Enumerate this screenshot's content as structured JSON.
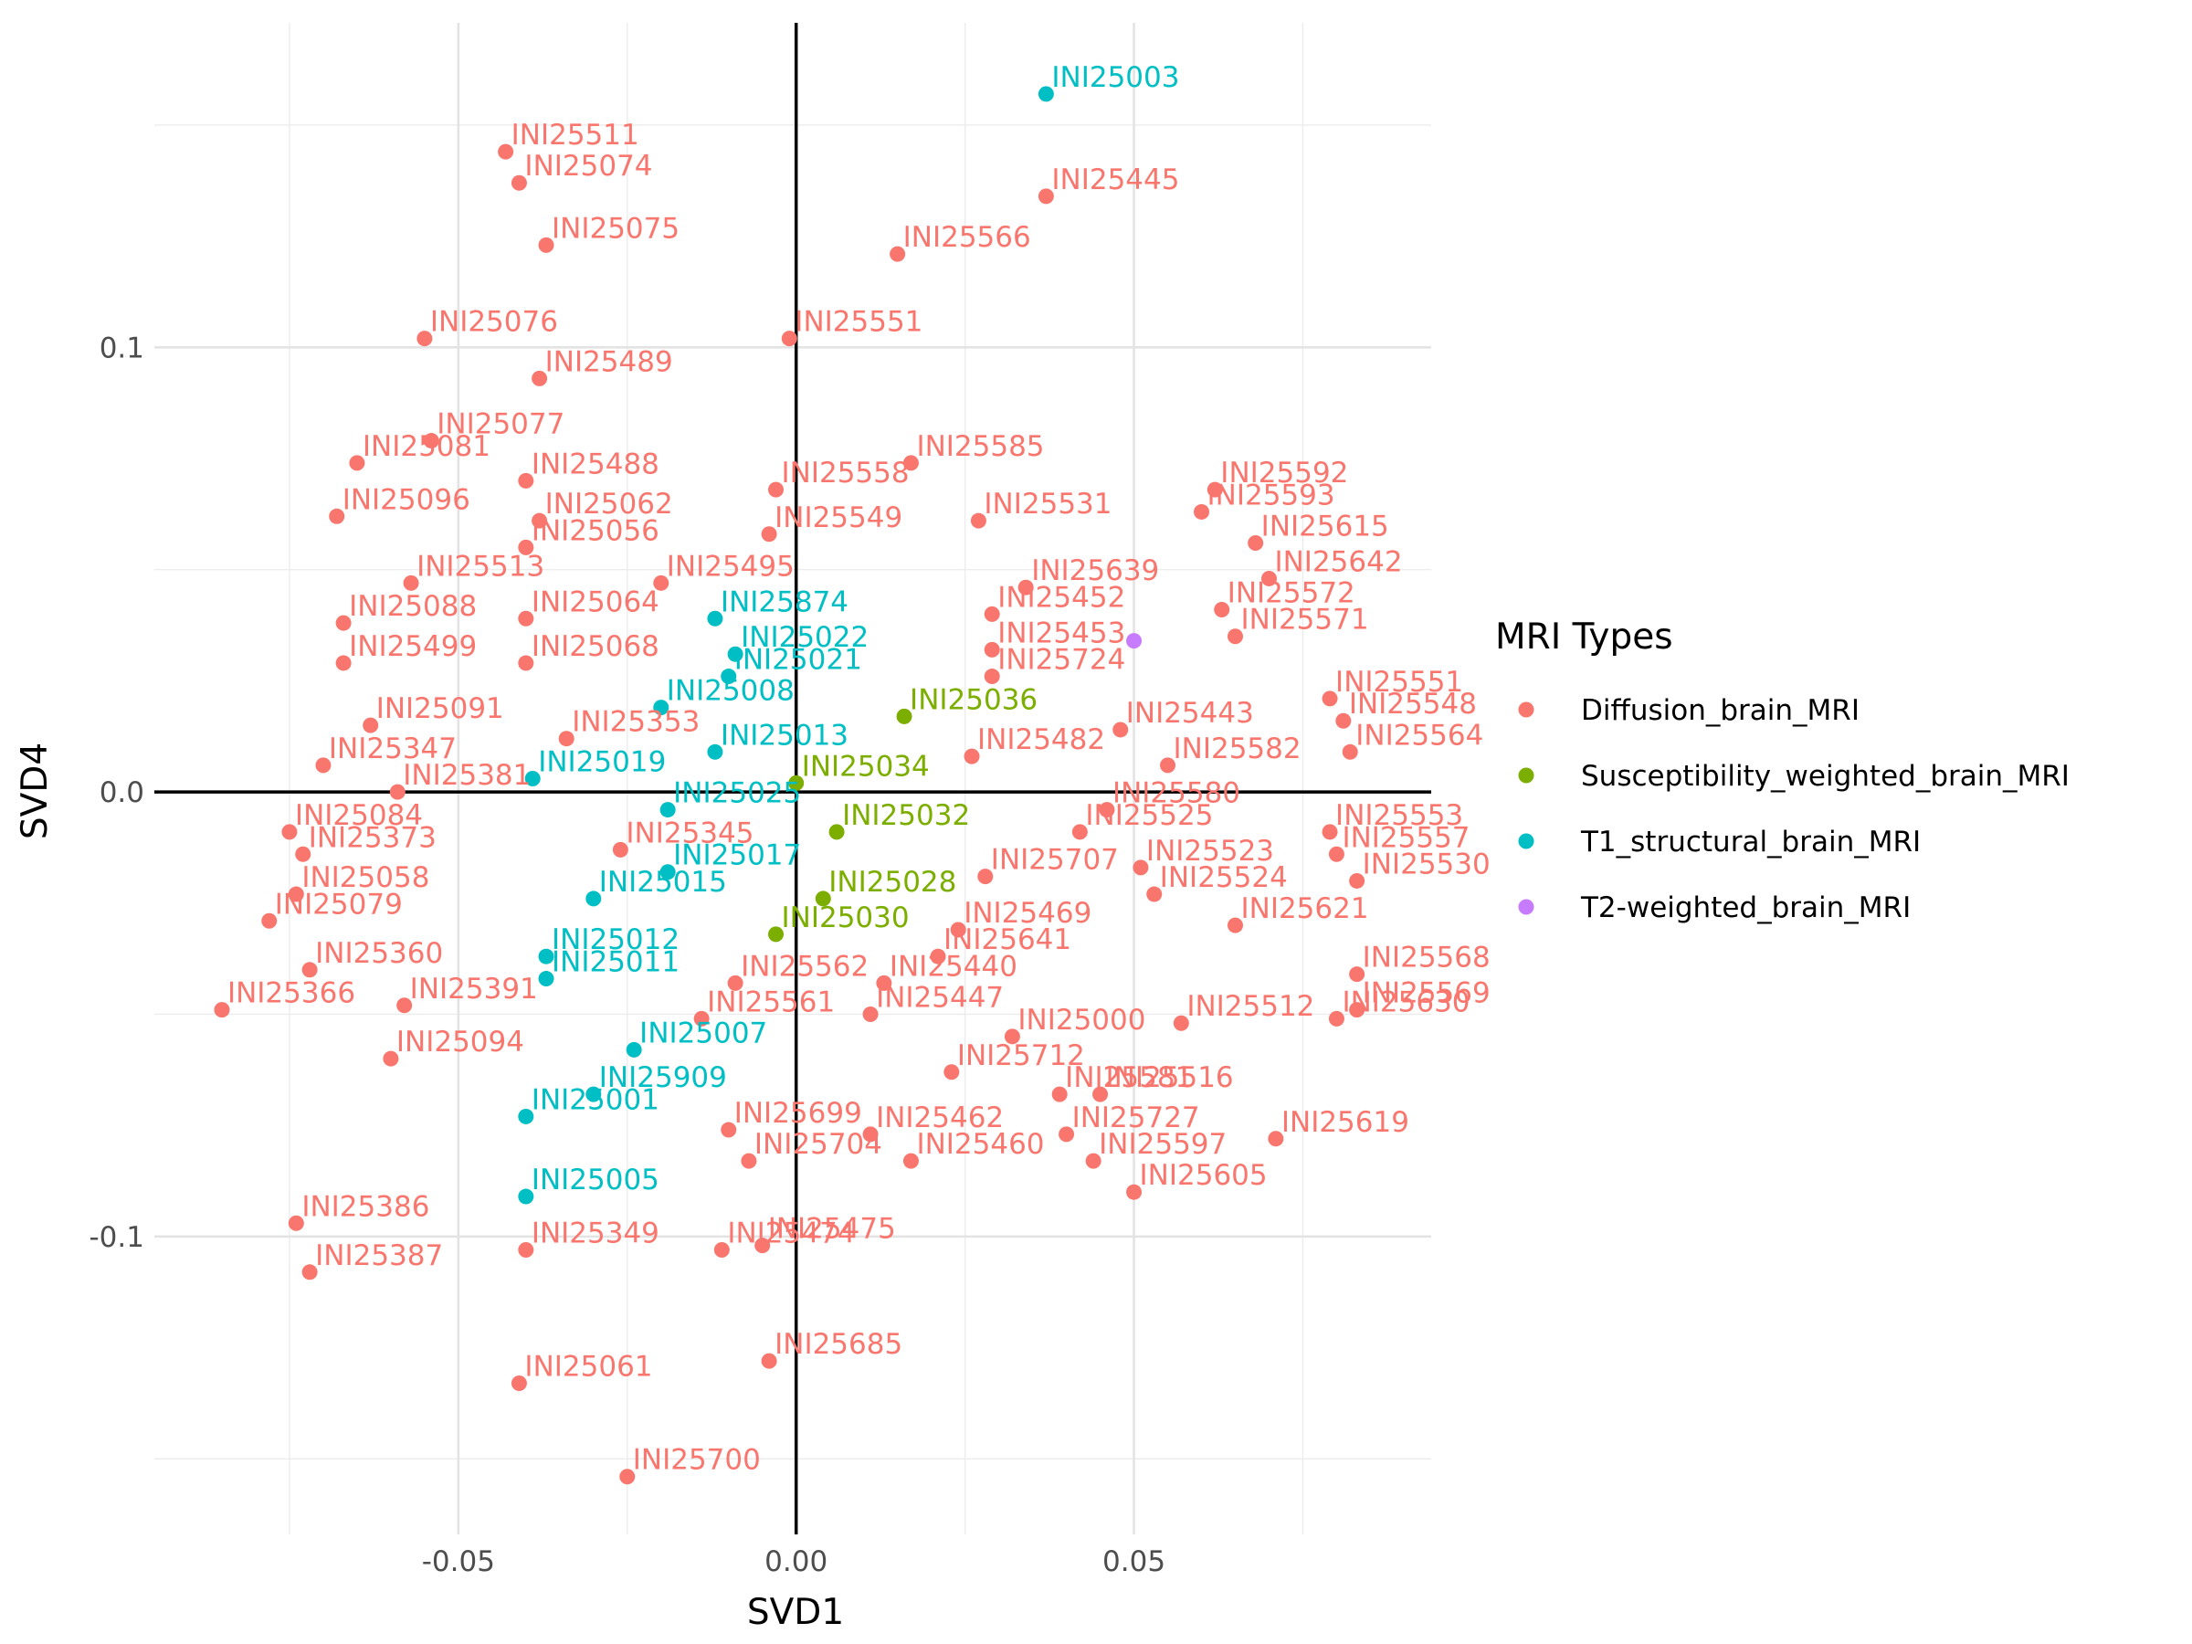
{
  "chart_data": {
    "type": "scatter",
    "title": "",
    "xlabel": "SVD1",
    "ylabel": "SVD4",
    "xlim": [
      -0.095,
      0.094
    ],
    "ylim": [
      -0.167,
      0.173
    ],
    "x_ticks": [
      {
        "value": -0.05,
        "label": "-0.05"
      },
      {
        "value": 0.0,
        "label": "0.00"
      },
      {
        "value": 0.05,
        "label": "0.05"
      }
    ],
    "y_ticks": [
      {
        "value": -0.1,
        "label": "-0.1"
      },
      {
        "value": 0.0,
        "label": "0.0"
      },
      {
        "value": 0.1,
        "label": "0.1"
      }
    ],
    "grid": true,
    "reference_lines": {
      "x": 0,
      "y": 0
    },
    "legend": {
      "title": "MRI Types",
      "position": "right",
      "entries": [
        {
          "name": "Diffusion_brain_MRI",
          "color": "#F8766D"
        },
        {
          "name": "Susceptibility_weighted_brain_MRI",
          "color": "#7CAE00"
        },
        {
          "name": "T1_structural_brain_MRI",
          "color": "#00BFC4"
        },
        {
          "name": "T2-weighted_brain_MRI",
          "color": "#C77CFF"
        }
      ]
    },
    "series": [
      {
        "name": "Diffusion_brain_MRI",
        "color": "#F8766D",
        "points": [
          [
            -0.043,
            0.144,
            "INI25511"
          ],
          [
            -0.041,
            0.137,
            "INI25074"
          ],
          [
            -0.037,
            0.123,
            "INI25075"
          ],
          [
            0.037,
            0.134,
            "INI25445"
          ],
          [
            0.015,
            0.121,
            "INI25566"
          ],
          [
            -0.055,
            0.102,
            "INI25076"
          ],
          [
            -0.001,
            0.102,
            "INI25551"
          ],
          [
            -0.038,
            0.093,
            "INI25489"
          ],
          [
            -0.054,
            0.079,
            "INI25077"
          ],
          [
            -0.065,
            0.074,
            "INI25081"
          ],
          [
            -0.04,
            0.07,
            "INI25488"
          ],
          [
            0.017,
            0.074,
            "INI25585"
          ],
          [
            -0.068,
            0.062,
            "INI25096"
          ],
          [
            -0.038,
            0.061,
            "INI25062"
          ],
          [
            -0.04,
            0.055,
            "INI25056"
          ],
          [
            -0.003,
            0.068,
            "INI25558"
          ],
          [
            0.027,
            0.061,
            "INI25531"
          ],
          [
            -0.004,
            0.058,
            "INI25549"
          ],
          [
            0.062,
            0.068,
            "INI25592"
          ],
          [
            0.06,
            0.063,
            "INI25593"
          ],
          [
            0.068,
            0.056,
            "INI25615"
          ],
          [
            -0.057,
            0.047,
            "INI25513"
          ],
          [
            -0.02,
            0.047,
            "INI25495"
          ],
          [
            0.034,
            0.046,
            "INI25639"
          ],
          [
            0.07,
            0.048,
            "INI25642"
          ],
          [
            -0.067,
            0.038,
            "INI25088"
          ],
          [
            -0.04,
            0.039,
            "INI25064"
          ],
          [
            0.029,
            0.04,
            "INI25452"
          ],
          [
            0.063,
            0.041,
            "INI25572"
          ],
          [
            0.065,
            0.035,
            "INI25571"
          ],
          [
            -0.067,
            0.029,
            "INI25499"
          ],
          [
            -0.04,
            0.029,
            "INI25068"
          ],
          [
            0.029,
            0.032,
            "INI25453"
          ],
          [
            0.029,
            0.026,
            "INI25724"
          ],
          [
            -0.063,
            0.015,
            "INI25091"
          ],
          [
            0.048,
            0.014,
            "INI25443"
          ],
          [
            0.079,
            0.021,
            "INI25551"
          ],
          [
            0.081,
            0.016,
            "INI25548"
          ],
          [
            0.082,
            0.009,
            "INI25564"
          ],
          [
            -0.07,
            0.006,
            "INI25347"
          ],
          [
            -0.034,
            0.012,
            "INI25353"
          ],
          [
            0.026,
            0.008,
            "INI25482"
          ],
          [
            0.055,
            0.006,
            "INI25582"
          ],
          [
            -0.059,
            0.0,
            "INI25381"
          ],
          [
            0.046,
            -0.004,
            "INI25580"
          ],
          [
            0.079,
            -0.009,
            "INI25553"
          ],
          [
            -0.075,
            -0.009,
            "INI25084"
          ],
          [
            0.042,
            -0.009,
            "INI25525"
          ],
          [
            0.08,
            -0.014,
            "INI25557"
          ],
          [
            -0.073,
            -0.014,
            "INI25373"
          ],
          [
            -0.026,
            -0.013,
            "INI25345"
          ],
          [
            0.051,
            -0.017,
            "INI25523"
          ],
          [
            0.083,
            -0.02,
            "INI25530"
          ],
          [
            0.028,
            -0.019,
            "INI25707"
          ],
          [
            0.053,
            -0.023,
            "INI25524"
          ],
          [
            -0.074,
            -0.023,
            "INI25058"
          ],
          [
            0.024,
            -0.031,
            "INI25469"
          ],
          [
            0.065,
            -0.03,
            "INI25621"
          ],
          [
            -0.078,
            -0.029,
            "INI25079"
          ],
          [
            0.021,
            -0.037,
            "INI25641"
          ],
          [
            0.083,
            -0.041,
            "INI25568"
          ],
          [
            -0.072,
            -0.04,
            "INI25360"
          ],
          [
            -0.009,
            -0.043,
            "INI25562"
          ],
          [
            0.013,
            -0.043,
            "INI25440"
          ],
          [
            0.083,
            -0.049,
            "INI25569"
          ],
          [
            -0.085,
            -0.049,
            "INI25366"
          ],
          [
            -0.058,
            -0.048,
            "INI25391"
          ],
          [
            -0.014,
            -0.051,
            "INI25561"
          ],
          [
            0.011,
            -0.05,
            "INI25447"
          ],
          [
            0.08,
            -0.051,
            "INI25630"
          ],
          [
            0.057,
            -0.052,
            "INI25512"
          ],
          [
            0.032,
            -0.055,
            "INI25000"
          ],
          [
            -0.06,
            -0.06,
            "INI25094"
          ],
          [
            0.023,
            -0.063,
            "INI25712"
          ],
          [
            0.039,
            -0.068,
            "INI25581"
          ],
          [
            0.045,
            -0.068,
            "INI25516"
          ],
          [
            -0.01,
            -0.076,
            "INI25699"
          ],
          [
            0.011,
            -0.077,
            "INI25462"
          ],
          [
            0.04,
            -0.077,
            "INI25727"
          ],
          [
            0.071,
            -0.078,
            "INI25619"
          ],
          [
            -0.007,
            -0.083,
            "INI25704"
          ],
          [
            0.017,
            -0.083,
            "INI25460"
          ],
          [
            0.044,
            -0.083,
            "INI25597"
          ],
          [
            0.05,
            -0.09,
            "INI25605"
          ],
          [
            -0.074,
            -0.097,
            "INI25386"
          ],
          [
            -0.04,
            -0.103,
            "INI25349"
          ],
          [
            -0.005,
            -0.102,
            "INI25475"
          ],
          [
            -0.072,
            -0.108,
            "INI25387"
          ],
          [
            -0.011,
            -0.103,
            "INI25474"
          ],
          [
            -0.004,
            -0.128,
            "INI25685"
          ],
          [
            -0.041,
            -0.133,
            "INI25061"
          ],
          [
            -0.025,
            -0.154,
            "INI25700"
          ]
        ]
      },
      {
        "name": "Susceptibility_weighted_brain_MRI",
        "color": "#7CAE00",
        "points": [
          [
            0.016,
            0.017,
            "INI25036"
          ],
          [
            0.0,
            0.002,
            "INI25034"
          ],
          [
            0.006,
            -0.009,
            "INI25032"
          ],
          [
            0.004,
            -0.024,
            "INI25028"
          ],
          [
            -0.003,
            -0.032,
            "INI25030"
          ]
        ]
      },
      {
        "name": "T1_structural_brain_MRI",
        "color": "#00BFC4",
        "points": [
          [
            0.037,
            0.157,
            "INI25003"
          ],
          [
            -0.012,
            0.039,
            "INI25874"
          ],
          [
            -0.009,
            0.031,
            "INI25022"
          ],
          [
            -0.01,
            0.026,
            "INI25021"
          ],
          [
            -0.02,
            0.019,
            "INI25008"
          ],
          [
            -0.012,
            0.009,
            "INI25013"
          ],
          [
            -0.039,
            0.003,
            "INI25019"
          ],
          [
            -0.019,
            -0.004,
            "INI25025"
          ],
          [
            -0.019,
            -0.018,
            "INI25017"
          ],
          [
            -0.03,
            -0.024,
            "INI25015"
          ],
          [
            -0.037,
            -0.037,
            "INI25012"
          ],
          [
            -0.037,
            -0.042,
            "INI25011"
          ],
          [
            -0.024,
            -0.058,
            "INI25007"
          ],
          [
            -0.03,
            -0.068,
            "INI25909"
          ],
          [
            -0.04,
            -0.073,
            "INI25001"
          ],
          [
            -0.04,
            -0.091,
            "INI25005"
          ]
        ]
      },
      {
        "name": "T2-weighted_brain_MRI",
        "color": "#C77CFF",
        "points": [
          [
            0.05,
            0.034,
            ""
          ]
        ]
      }
    ]
  }
}
